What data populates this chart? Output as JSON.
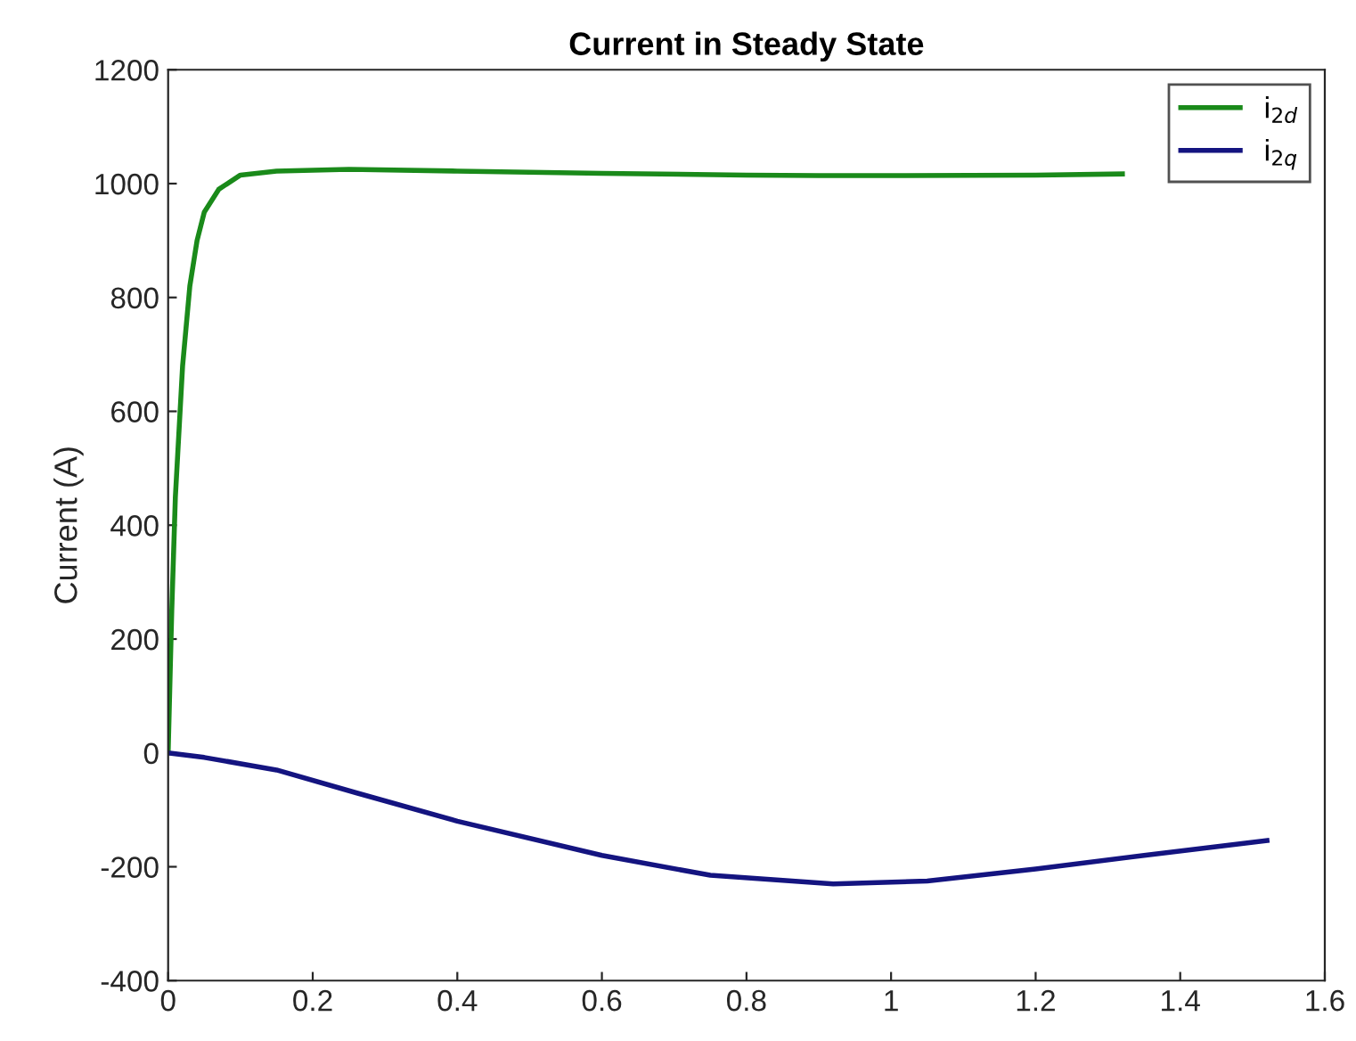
{
  "chart_data": {
    "type": "line",
    "title": "Current in Steady State",
    "ylabel": "Current (A)",
    "xlim": [
      0,
      1.6
    ],
    "xticks": [
      0,
      0.2,
      0.4,
      0.6,
      0.8,
      1,
      1.2,
      1.4,
      1.6
    ],
    "ylim": [
      -400,
      1200
    ],
    "yticks": [
      -400,
      -200,
      0,
      200,
      400,
      600,
      800,
      1000,
      1200
    ],
    "grid": false,
    "legend": "top right",
    "line_style": "solid",
    "marker": "none",
    "series": [
      {
        "name": "i$_{2d}$",
        "color": "#1a8a1a",
        "x": [
          0,
          0.005,
          0.01,
          0.02,
          0.03,
          0.04,
          0.05,
          0.07,
          0.1,
          0.15,
          0.25,
          0.4,
          0.6,
          0.8,
          0.9,
          1.0,
          1.2,
          1.32
        ],
        "values": [
          0,
          250,
          450,
          680,
          820,
          900,
          950,
          990,
          1015,
          1022,
          1025,
          1022,
          1018,
          1015,
          1014,
          1014,
          1015,
          1017
        ]
      },
      {
        "name": "i$_{2q}$",
        "color": "#141480",
        "x": [
          0,
          0.05,
          0.15,
          0.26,
          0.4,
          0.6,
          0.75,
          0.92,
          1.05,
          1.2,
          1.35,
          1.52
        ],
        "values": [
          0,
          -8,
          -30,
          -70,
          -120,
          -180,
          -215,
          -230,
          -225,
          -204,
          -180,
          -154
        ]
      }
    ]
  }
}
